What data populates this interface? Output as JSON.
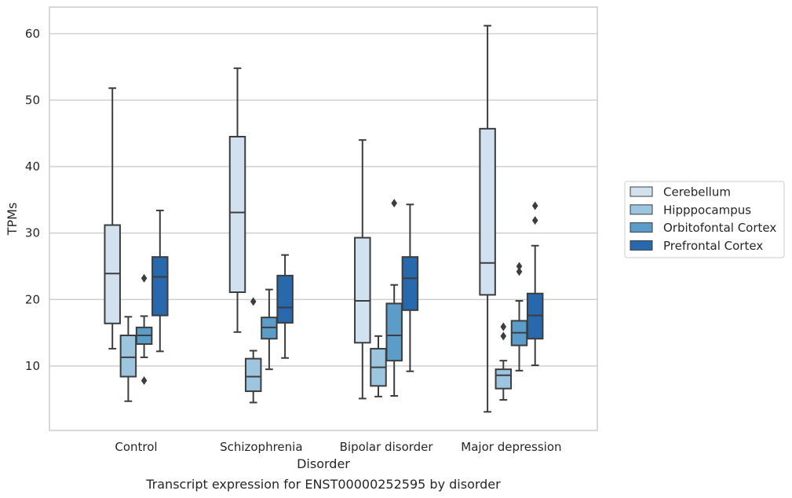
{
  "chart_data": {
    "type": "box",
    "caption": "Transcript expression for ENST00000252595 by disorder",
    "xlabel": "Disorder",
    "ylabel": "TPMs",
    "ylim": [
      0.3,
      64
    ],
    "yticks": [
      10,
      20,
      30,
      40,
      50,
      60
    ],
    "grid": "horizontal",
    "legend_position": "right",
    "categories": [
      "Control",
      "Schizophrenia",
      "Bipolar disorder",
      "Major depression"
    ],
    "series": [
      {
        "name": "Cerebellum",
        "color": "#d2e1f0",
        "boxes": [
          {
            "whisker_low": 12.6,
            "q1": 16.4,
            "median": 23.9,
            "q3": 31.2,
            "whisker_high": 51.8,
            "outliers": []
          },
          {
            "whisker_low": 15.1,
            "q1": 21.1,
            "median": 33.1,
            "q3": 44.5,
            "whisker_high": 54.8,
            "outliers": []
          },
          {
            "whisker_low": 5.1,
            "q1": 13.5,
            "median": 19.8,
            "q3": 29.3,
            "whisker_high": 44.0,
            "outliers": []
          },
          {
            "whisker_low": 3.1,
            "q1": 20.7,
            "median": 25.5,
            "q3": 45.7,
            "whisker_high": 61.2,
            "outliers": []
          }
        ]
      },
      {
        "name": "Hipppocampus",
        "color": "#9dc5e0",
        "boxes": [
          {
            "whisker_low": 4.7,
            "q1": 8.4,
            "median": 11.3,
            "q3": 14.6,
            "whisker_high": 17.4,
            "outliers": []
          },
          {
            "whisker_low": 4.5,
            "q1": 6.2,
            "median": 8.4,
            "q3": 11.1,
            "whisker_high": 12.3,
            "outliers": [
              19.7
            ]
          },
          {
            "whisker_low": 5.4,
            "q1": 7.0,
            "median": 9.8,
            "q3": 12.6,
            "whisker_high": 14.5,
            "outliers": []
          },
          {
            "whisker_low": 4.9,
            "q1": 6.6,
            "median": 8.6,
            "q3": 9.5,
            "whisker_high": 10.8,
            "outliers": [
              15.9,
              14.5
            ]
          }
        ]
      },
      {
        "name": "Orbitofontal Cortex",
        "color": "#5b9cc9",
        "boxes": [
          {
            "whisker_low": 11.3,
            "q1": 13.3,
            "median": 14.6,
            "q3": 15.8,
            "whisker_high": 17.5,
            "outliers": [
              23.2,
              7.8
            ]
          },
          {
            "whisker_low": 9.5,
            "q1": 14.1,
            "median": 15.8,
            "q3": 17.3,
            "whisker_high": 21.5,
            "outliers": []
          },
          {
            "whisker_low": 5.5,
            "q1": 10.8,
            "median": 14.6,
            "q3": 19.4,
            "whisker_high": 22.2,
            "outliers": [
              34.5
            ]
          },
          {
            "whisker_low": 9.3,
            "q1": 13.1,
            "median": 15.0,
            "q3": 16.8,
            "whisker_high": 19.8,
            "outliers": [
              25.0,
              24.2
            ]
          }
        ]
      },
      {
        "name": "Prefrontal Cortex",
        "color": "#2868ac",
        "boxes": [
          {
            "whisker_low": 12.2,
            "q1": 17.6,
            "median": 23.4,
            "q3": 26.4,
            "whisker_high": 33.4,
            "outliers": []
          },
          {
            "whisker_low": 11.2,
            "q1": 16.5,
            "median": 18.8,
            "q3": 23.6,
            "whisker_high": 26.7,
            "outliers": []
          },
          {
            "whisker_low": 9.2,
            "q1": 18.4,
            "median": 23.2,
            "q3": 26.4,
            "whisker_high": 34.3,
            "outliers": []
          },
          {
            "whisker_low": 10.1,
            "q1": 14.1,
            "median": 17.6,
            "q3": 20.9,
            "whisker_high": 28.1,
            "outliers": [
              34.1,
              31.9
            ]
          }
        ]
      }
    ]
  }
}
